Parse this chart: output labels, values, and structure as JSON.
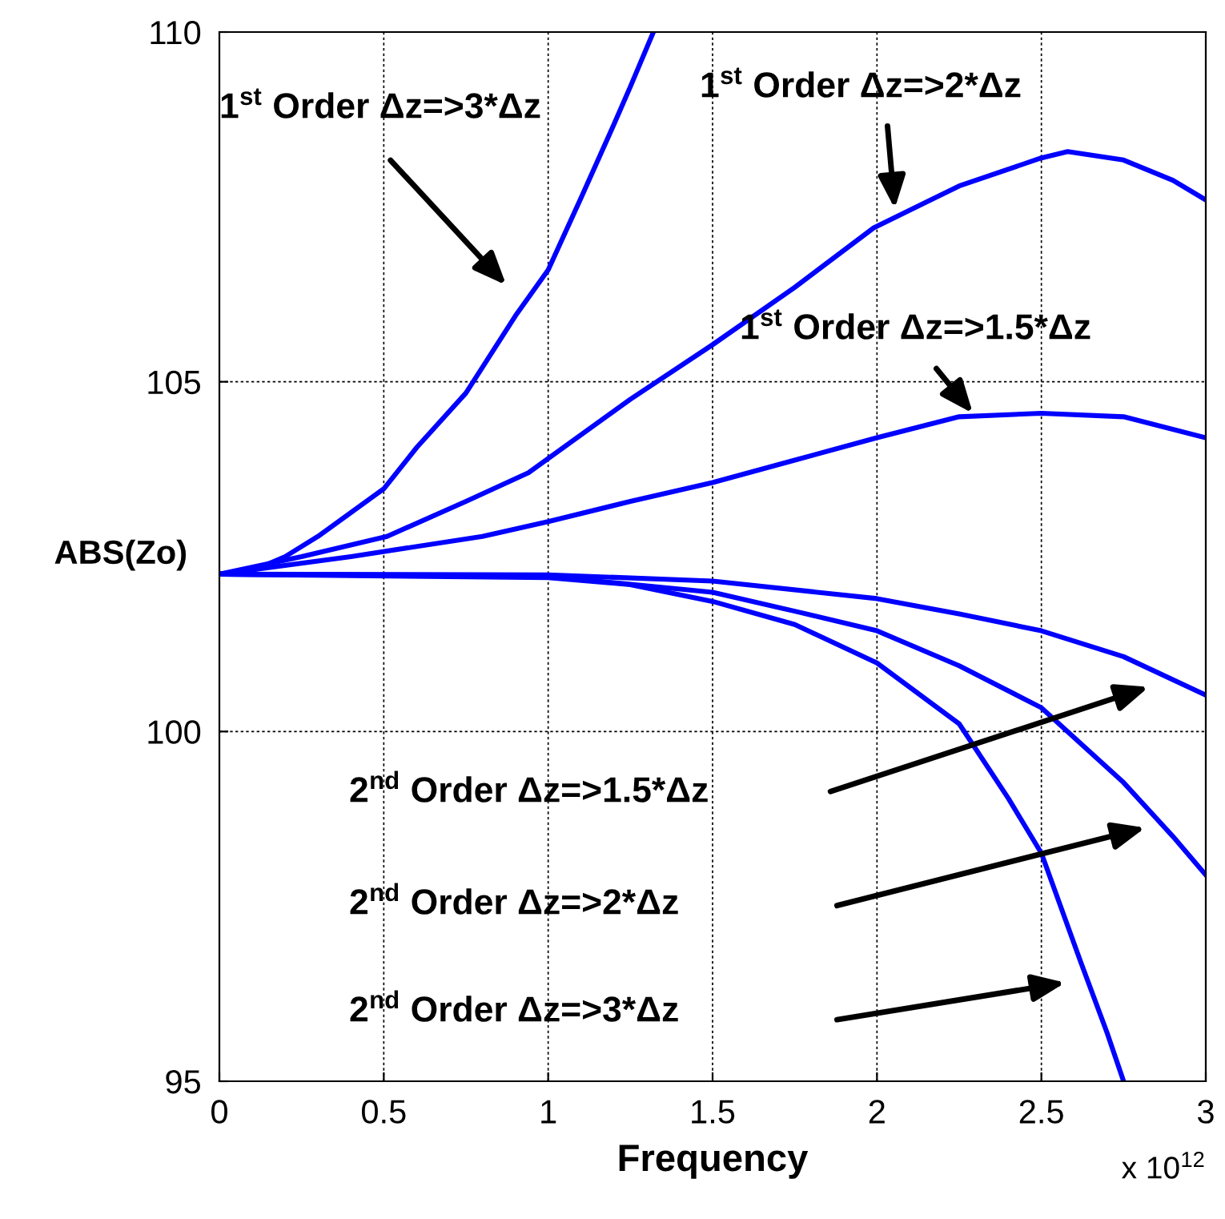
{
  "chart_data": {
    "type": "line",
    "xlabel": "Frequency",
    "ylabel": "ABS(Zo)",
    "xlim": [
      0,
      3
    ],
    "xticks": [
      0,
      0.5,
      1,
      1.5,
      2,
      2.5,
      3
    ],
    "ylim": [
      95,
      110
    ],
    "yticks": [
      95,
      100,
      105,
      110
    ],
    "grid": true,
    "marker": "none",
    "line_style": "solid",
    "series": [
      {
        "color": "#0000ff",
        "x": [
          0,
          0.1,
          0.2,
          0.3,
          0.4,
          0.5,
          0.6,
          0.75,
          0.9,
          1.0,
          1.1,
          1.2,
          1.25,
          1.32
        ],
        "values": [
          102.25,
          102.3,
          102.5,
          102.79,
          103.13,
          103.47,
          104.06,
          104.84,
          105.94,
          106.6,
          107.63,
          108.68,
          109.22,
          110
        ]
      },
      {
        "color": "#0000ff",
        "x": [
          0,
          0.25,
          0.51,
          0.75,
          0.94,
          1.25,
          1.5,
          1.75,
          1.99,
          2.25,
          2.5,
          2.58,
          2.75,
          2.9,
          3.0
        ],
        "values": [
          102.25,
          102.5,
          102.79,
          103.29,
          103.7,
          104.75,
          105.53,
          106.35,
          107.2,
          107.8,
          108.2,
          108.29,
          108.17,
          107.88,
          107.6
        ]
      },
      {
        "color": "#0000ff",
        "x": [
          0,
          0.4,
          0.8,
          1.0,
          1.25,
          1.5,
          1.75,
          2.0,
          2.25,
          2.5,
          2.75,
          3.0
        ],
        "values": [
          102.25,
          102.5,
          102.79,
          103.0,
          103.29,
          103.56,
          103.88,
          104.2,
          104.5,
          104.55,
          104.5,
          104.2
        ]
      },
      {
        "color": "#0000ff",
        "x": [
          0,
          1.0,
          1.5,
          2.0,
          2.25,
          2.5,
          2.75,
          3.0
        ],
        "values": [
          102.25,
          102.24,
          102.15,
          101.9,
          101.68,
          101.44,
          101.07,
          100.52
        ]
      },
      {
        "color": "#0000ff",
        "x": [
          0,
          1.0,
          1.5,
          1.75,
          2.0,
          2.25,
          2.5,
          2.75,
          2.9,
          3.0
        ],
        "values": [
          102.25,
          102.22,
          101.99,
          101.72,
          101.44,
          100.94,
          100.34,
          99.27,
          98.5,
          97.95
        ]
      },
      {
        "color": "#0000ff",
        "x": [
          0,
          1.0,
          1.25,
          1.5,
          1.75,
          2.0,
          2.25,
          2.4,
          2.5,
          2.62,
          2.7,
          2.75
        ],
        "values": [
          102.25,
          102.2,
          102.1,
          101.86,
          101.53,
          100.98,
          100.11,
          99.04,
          98.26,
          96.7,
          95.69,
          95.0
        ]
      }
    ],
    "annotations": [
      "1$^{st}$ Order Δz=>3*Δz",
      "1$^{st}$ Order Δz=>2*Δz",
      {
        "text": "1$^{st}$ Order Δz=>1.5*Δz",
        "x": 2.3,
        "y": 104.5
      },
      "2$^{nd}$ Order Δz=>1.5*Δz",
      "2$^{nd}$ Order Δz=>2*Δz",
      "2$^{nd}$ Order Δz=>3*Δz",
      "x 10$^{12}$"
    ]
  }
}
